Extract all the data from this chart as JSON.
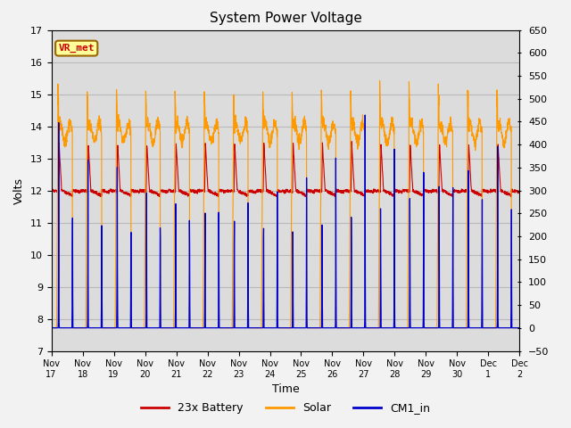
{
  "title": "System Power Voltage",
  "xlabel": "Time",
  "ylabel": "Volts",
  "ylim": [
    7.0,
    17.0
  ],
  "y2lim": [
    -50,
    650
  ],
  "yticks": [
    7.0,
    8.0,
    9.0,
    10.0,
    11.0,
    12.0,
    13.0,
    14.0,
    15.0,
    16.0,
    17.0
  ],
  "y2ticks": [
    -50,
    0,
    50,
    100,
    150,
    200,
    250,
    300,
    350,
    400,
    450,
    500,
    550,
    600,
    650
  ],
  "xtick_labels": [
    "Nov 17",
    "Nov 18",
    "Nov 19",
    "Nov 20",
    "Nov 21",
    "Nov 22",
    "Nov 23",
    "Nov 24",
    "Nov 25",
    "Nov 26",
    "Nov 27",
    "Nov 28",
    "Nov 29",
    "Nov 30",
    "Dec 1",
    "Dec 2"
  ],
  "annotation_text": "VR_met",
  "annotation_color": "#cc0000",
  "legend_entries": [
    "23x Battery",
    "Solar",
    "CM1_in"
  ],
  "legend_colors": [
    "#cc0000",
    "#ff9900",
    "#0000cc"
  ],
  "line_colors": {
    "battery": "#cc0000",
    "solar": "#ff9900",
    "cm1": "#0000cc"
  },
  "background_color": "#d8d8d8",
  "plot_bg_color": "#e8e8e8",
  "grid_color": "#c0c0c0",
  "title_fontsize": 11,
  "axis_fontsize": 9,
  "tick_fontsize": 8,
  "num_days": 16
}
